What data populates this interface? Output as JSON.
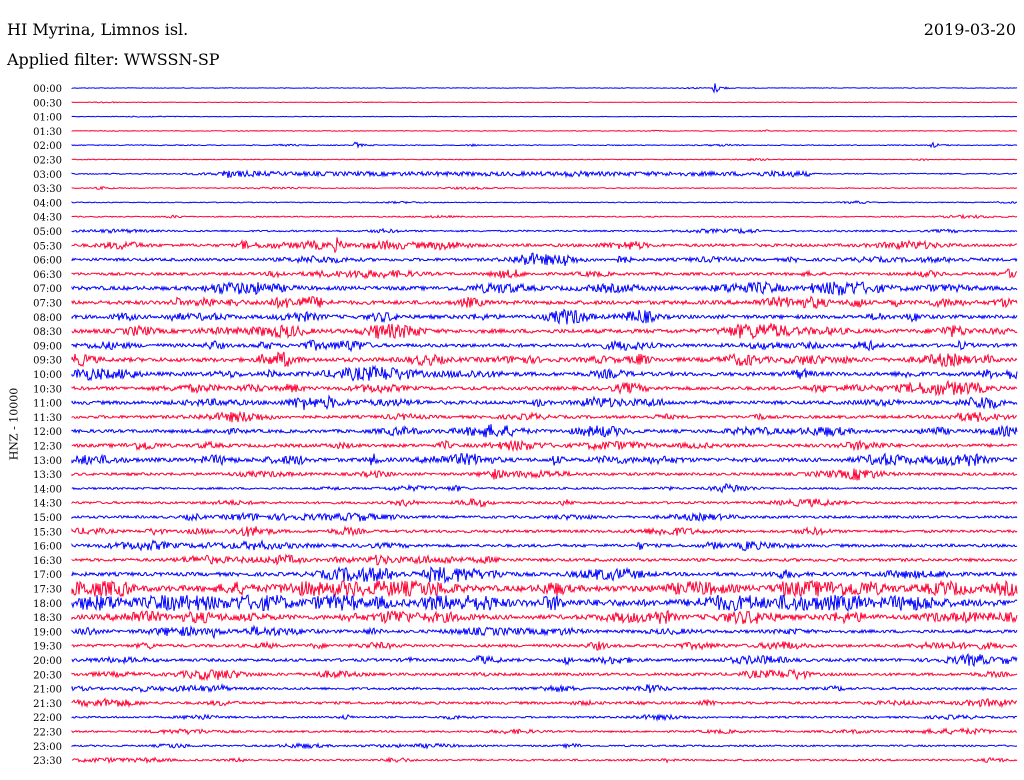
{
  "header": {
    "station": "HI Myrina, Limnos isl.",
    "date": "2019-03-20",
    "filter": "Applied filter: WWSSN-SP"
  },
  "chart_data": {
    "type": "seismogram-helicorder",
    "ylabel": "HNZ - 10000",
    "colors": [
      "#0000ff",
      "#ff0033"
    ],
    "rows": [
      "00:00",
      "00:30",
      "01:00",
      "01:30",
      "02:00",
      "02:30",
      "03:00",
      "03:30",
      "04:00",
      "04:30",
      "05:00",
      "05:30",
      "06:00",
      "06:30",
      "07:00",
      "07:30",
      "08:00",
      "08:30",
      "09:00",
      "09:30",
      "10:00",
      "10:30",
      "11:00",
      "11:30",
      "12:00",
      "12:30",
      "13:00",
      "13:30",
      "14:00",
      "14:30",
      "15:00",
      "15:30",
      "16:00",
      "16:30",
      "17:00",
      "17:30",
      "18:00",
      "18:30",
      "19:00",
      "19:30",
      "20:00",
      "20:30",
      "21:00",
      "21:30",
      "22:00",
      "22:30",
      "23:00",
      "23:30"
    ],
    "noise_level": [
      0.3,
      0.3,
      0.3,
      0.4,
      0.5,
      0.4,
      0.6,
      0.5,
      0.5,
      0.6,
      0.9,
      1.6,
      1.6,
      1.5,
      2.1,
      2.1,
      2.0,
      2.2,
      1.9,
      2.2,
      2.1,
      1.9,
      1.9,
      1.6,
      1.8,
      1.8,
      2.1,
      1.5,
      1.1,
      1.3,
      1.4,
      1.5,
      1.6,
      1.6,
      2.0,
      3.2,
      3.6,
      2.4,
      1.7,
      1.6,
      1.6,
      1.5,
      1.3,
      1.4,
      1.0,
      1.0,
      0.9,
      1.0
    ],
    "events": [
      {
        "row": 0,
        "time_fraction": 0.68,
        "amplitude": 6
      },
      {
        "row": 4,
        "time_fraction": 0.3,
        "amplitude": 3
      },
      {
        "row": 4,
        "time_fraction": 0.91,
        "amplitude": 3
      },
      {
        "row": 6,
        "time_fraction": 0.16,
        "amplitude": 2
      },
      {
        "row": 11,
        "time_fraction": 0.18,
        "amplitude": 5
      },
      {
        "row": 11,
        "time_fraction": 0.28,
        "amplitude": 6
      },
      {
        "row": 12,
        "time_fraction": 0.52,
        "amplitude": 5
      },
      {
        "row": 13,
        "time_fraction": 0.99,
        "amplitude": 8
      },
      {
        "row": 18,
        "time_fraction": 0.94,
        "amplitude": 4
      },
      {
        "row": 19,
        "time_fraction": 0.47,
        "amplitude": 4
      },
      {
        "row": 22,
        "time_fraction": 0.27,
        "amplitude": 4
      },
      {
        "row": 26,
        "time_fraction": 0.51,
        "amplitude": 5
      },
      {
        "row": 32,
        "time_fraction": 0.6,
        "amplitude": 4
      },
      {
        "row": 34,
        "time_fraction": 0.38,
        "amplitude": 5
      },
      {
        "row": 35,
        "time_fraction": 0.28,
        "amplitude": 6
      },
      {
        "row": 38,
        "time_fraction": 0.15,
        "amplitude": 4
      },
      {
        "row": 40,
        "time_fraction": 0.43,
        "amplitude": 5
      },
      {
        "row": 42,
        "time_fraction": 0.61,
        "amplitude": 3
      }
    ]
  }
}
